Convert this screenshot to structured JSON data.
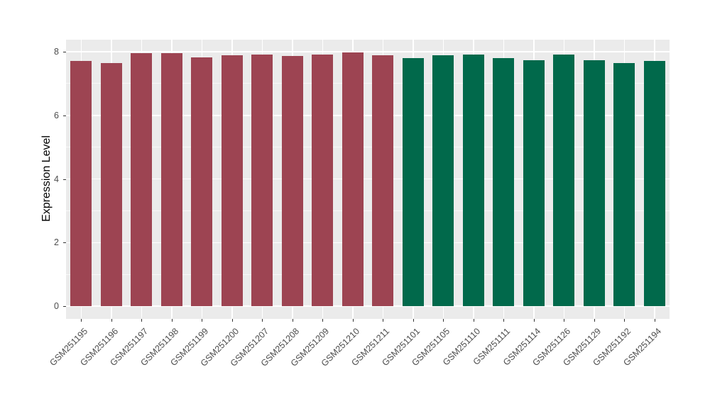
{
  "chart_data": {
    "type": "bar",
    "title": "",
    "xlabel": "",
    "ylabel": "Expression Level",
    "ylim": [
      0,
      8
    ],
    "yticks": [
      0,
      2,
      4,
      6,
      8
    ],
    "yticks_minor": [
      1,
      3,
      5,
      7
    ],
    "grid": true,
    "legend": false,
    "panel_background": "#EBEBEB",
    "grid_color": "#FFFFFF",
    "tick_color": "#333333",
    "tick_label_color": "#4D4D4D",
    "axis_title_color": "#000000",
    "categories": [
      "GSM251195",
      "GSM251196",
      "GSM251197",
      "GSM251198",
      "GSM251199",
      "GSM251200",
      "GSM251207",
      "GSM251208",
      "GSM251209",
      "GSM251210",
      "GSM251211",
      "GSM251101",
      "GSM251105",
      "GSM251110",
      "GSM251111",
      "GSM251114",
      "GSM251126",
      "GSM251129",
      "GSM251192",
      "GSM251194"
    ],
    "series": [
      {
        "name": "red-bar-group",
        "color": "#9D4452",
        "categories": [
          "GSM251195",
          "GSM251196",
          "GSM251197",
          "GSM251198",
          "GSM251199",
          "GSM251200",
          "GSM251207",
          "GSM251208",
          "GSM251209",
          "GSM251210",
          "GSM251211"
        ],
        "values": [
          7.71,
          7.65,
          7.96,
          7.96,
          7.83,
          7.88,
          7.92,
          7.86,
          7.91,
          7.97,
          7.88
        ]
      },
      {
        "name": "green-bar-group",
        "color": "#01694B",
        "categories": [
          "GSM251101",
          "GSM251105",
          "GSM251110",
          "GSM251111",
          "GSM251114",
          "GSM251126",
          "GSM251129",
          "GSM251192",
          "GSM251194"
        ],
        "values": [
          7.8,
          7.88,
          7.9,
          7.8,
          7.73,
          7.9,
          7.74,
          7.65,
          7.71
        ]
      }
    ]
  }
}
